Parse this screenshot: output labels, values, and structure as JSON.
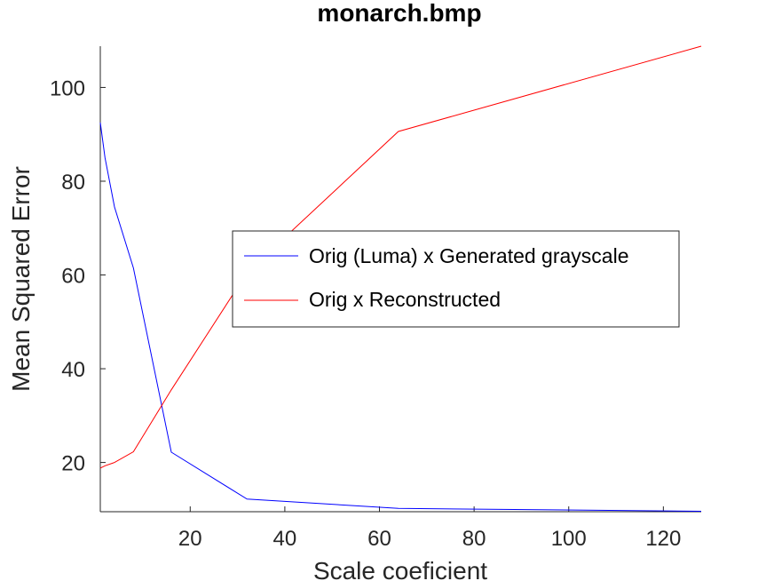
{
  "chart_data": {
    "type": "line",
    "title": "monarch.bmp",
    "xlabel": "Scale coeficient",
    "ylabel": "Mean Squared Error",
    "xlim": [
      1,
      128
    ],
    "ylim": [
      9.5,
      108.8
    ],
    "xticks": [
      20,
      40,
      60,
      80,
      100,
      120
    ],
    "yticks": [
      20,
      40,
      60,
      80,
      100
    ],
    "grid": false,
    "legend_position": "center-right",
    "series": [
      {
        "name": "Orig (Luma) x Generated grayscale",
        "color": "#0000ff",
        "x": [
          1,
          2,
          4,
          8,
          16,
          32,
          64,
          128
        ],
        "y": [
          92.5,
          85.0,
          74.5,
          61.5,
          22.2,
          12.2,
          10.2,
          9.6
        ]
      },
      {
        "name": "Orig x Reconstructed",
        "color": "#ff0000",
        "x": [
          1,
          2,
          4,
          8,
          16,
          32,
          64,
          128
        ],
        "y": [
          18.8,
          19.3,
          20.0,
          22.3,
          35.5,
          60.5,
          90.6,
          108.8
        ]
      }
    ]
  }
}
